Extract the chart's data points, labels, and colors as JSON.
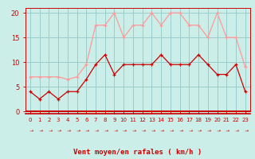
{
  "hours": [
    0,
    1,
    2,
    3,
    4,
    5,
    6,
    7,
    8,
    9,
    10,
    11,
    12,
    13,
    14,
    15,
    16,
    17,
    18,
    19,
    20,
    21,
    22,
    23
  ],
  "wind_avg": [
    4,
    2.5,
    4,
    2.5,
    4,
    4,
    6.5,
    9.5,
    11.5,
    7.5,
    9.5,
    9.5,
    9.5,
    9.5,
    11.5,
    9.5,
    9.5,
    9.5,
    11.5,
    9.5,
    7.5,
    7.5,
    9.5,
    4
  ],
  "wind_gust": [
    7,
    7,
    7,
    7,
    6.5,
    7,
    9.5,
    17.5,
    17.5,
    20,
    15,
    17.5,
    17.5,
    20,
    17.5,
    20,
    20,
    17.5,
    17.5,
    15,
    20,
    15,
    15,
    9
  ],
  "avg_color": "#cc0000",
  "gust_color": "#ff9999",
  "bg_color": "#cceee8",
  "grid_color": "#99cccc",
  "xlabel": "Vent moyen/en rafales ( km/h )",
  "xlabel_color": "#cc0000",
  "tick_color": "#cc0000",
  "arrow_color": "#cc0000",
  "ylim": [
    0,
    21
  ],
  "yticks": [
    0,
    5,
    10,
    15,
    20
  ],
  "spine_color": "#cc0000"
}
